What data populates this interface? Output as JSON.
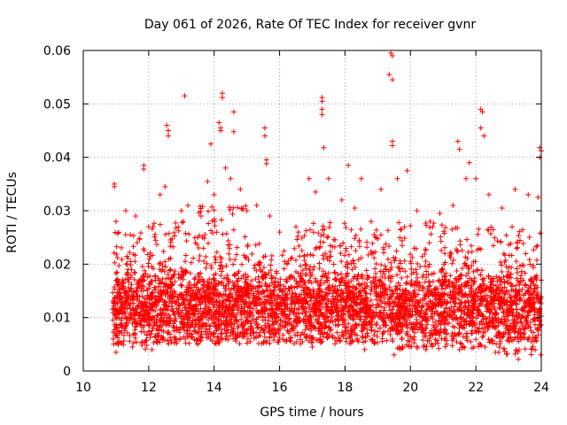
{
  "chart_data": {
    "type": "scatter",
    "title": "Day 061 of 2026, Rate Of TEC Index for receiver gvnr",
    "xlabel": "GPS time / hours",
    "ylabel": "ROTI / TECUs",
    "xlim": [
      10,
      24
    ],
    "ylim": [
      0,
      0.06
    ],
    "x_ticks": [
      10,
      12,
      14,
      16,
      18,
      20,
      22,
      24
    ],
    "x_tick_labels": [
      "10",
      "12",
      "14",
      "16",
      "18",
      "20",
      "22",
      "24"
    ],
    "y_ticks": [
      0,
      0.01,
      0.02,
      0.03,
      0.04,
      0.05,
      0.06
    ],
    "y_tick_labels": [
      "0",
      "0.01",
      "0.02",
      "0.03",
      "0.04",
      "0.05",
      "0.06"
    ],
    "grid": true,
    "marker": "plus",
    "color": "#ff0000",
    "series": [
      {
        "name": "ROTI",
        "points": [
          [
            10.95,
            0.035
          ],
          [
            10.95,
            0.0345
          ],
          [
            11.85,
            0.0385
          ],
          [
            11.85,
            0.0378
          ],
          [
            12.55,
            0.046
          ],
          [
            12.6,
            0.045
          ],
          [
            12.6,
            0.044
          ],
          [
            13.1,
            0.0515
          ],
          [
            13.9,
            0.0425
          ],
          [
            14.15,
            0.0465
          ],
          [
            14.2,
            0.0455
          ],
          [
            14.2,
            0.045
          ],
          [
            14.25,
            0.052
          ],
          [
            14.25,
            0.0512
          ],
          [
            14.6,
            0.0485
          ],
          [
            14.6,
            0.0448
          ],
          [
            15.55,
            0.0455
          ],
          [
            15.55,
            0.044
          ],
          [
            15.6,
            0.0395
          ],
          [
            15.6,
            0.0388
          ],
          [
            17.3,
            0.0512
          ],
          [
            17.3,
            0.0505
          ],
          [
            17.3,
            0.049
          ],
          [
            17.3,
            0.048
          ],
          [
            17.35,
            0.0418
          ],
          [
            18.1,
            0.0385
          ],
          [
            19.4,
            0.0595
          ],
          [
            19.45,
            0.059
          ],
          [
            19.35,
            0.0555
          ],
          [
            19.45,
            0.0545
          ],
          [
            19.45,
            0.043
          ],
          [
            19.45,
            0.0422
          ],
          [
            21.45,
            0.043
          ],
          [
            21.5,
            0.0415
          ],
          [
            21.8,
            0.039
          ],
          [
            22.15,
            0.049
          ],
          [
            22.2,
            0.0485
          ],
          [
            22.15,
            0.0455
          ],
          [
            22.25,
            0.044
          ],
          [
            23.95,
            0.0418
          ],
          [
            23.95,
            0.04
          ],
          [
            24.0,
            0.0412
          ],
          [
            11.0,
            0.028
          ],
          [
            11.3,
            0.03
          ],
          [
            11.6,
            0.029
          ],
          [
            12.0,
            0.027
          ],
          [
            12.35,
            0.033
          ],
          [
            12.5,
            0.0345
          ],
          [
            13.0,
            0.03
          ],
          [
            13.2,
            0.031
          ],
          [
            13.6,
            0.029
          ],
          [
            13.8,
            0.0355
          ],
          [
            14.0,
            0.033
          ],
          [
            14.35,
            0.038
          ],
          [
            14.5,
            0.036
          ],
          [
            14.8,
            0.034
          ],
          [
            15.0,
            0.03
          ],
          [
            15.3,
            0.031
          ],
          [
            15.7,
            0.029
          ],
          [
            16.0,
            0.026
          ],
          [
            16.5,
            0.027
          ],
          [
            16.9,
            0.036
          ],
          [
            17.1,
            0.0335
          ],
          [
            17.5,
            0.036
          ],
          [
            17.9,
            0.032
          ],
          [
            18.3,
            0.0305
          ],
          [
            18.5,
            0.036
          ],
          [
            18.8,
            0.028
          ],
          [
            19.1,
            0.034
          ],
          [
            19.6,
            0.036
          ],
          [
            19.9,
            0.0375
          ],
          [
            20.2,
            0.03
          ],
          [
            20.6,
            0.028
          ],
          [
            20.9,
            0.0295
          ],
          [
            21.3,
            0.031
          ],
          [
            21.7,
            0.036
          ],
          [
            22.0,
            0.036
          ],
          [
            22.4,
            0.033
          ],
          [
            22.8,
            0.0305
          ],
          [
            23.2,
            0.034
          ],
          [
            23.6,
            0.033
          ],
          [
            23.9,
            0.0325
          ],
          [
            11.0,
            0.0035
          ],
          [
            11.5,
            0.0045
          ],
          [
            12.1,
            0.004
          ],
          [
            13.5,
            0.005
          ],
          [
            15.1,
            0.0055
          ],
          [
            17.0,
            0.0045
          ],
          [
            18.6,
            0.004
          ],
          [
            19.5,
            0.003
          ],
          [
            20.4,
            0.0045
          ],
          [
            21.5,
            0.004
          ],
          [
            22.6,
            0.0035
          ],
          [
            23.3,
            0.0022
          ],
          [
            23.7,
            0.0055
          ]
        ],
        "bulk_band": [
          {
            "x_range": [
              10.9,
              12.0
            ],
            "y_range": [
              0.004,
              0.026
            ],
            "count": 380
          },
          {
            "x_range": [
              12.0,
              13.5
            ],
            "y_range": [
              0.005,
              0.028
            ],
            "count": 520
          },
          {
            "x_range": [
              13.5,
              15.0
            ],
            "y_range": [
              0.005,
              0.031
            ],
            "count": 560
          },
          {
            "x_range": [
              15.0,
              16.5
            ],
            "y_range": [
              0.005,
              0.024
            ],
            "count": 460
          },
          {
            "x_range": [
              16.5,
              18.0
            ],
            "y_range": [
              0.005,
              0.028
            ],
            "count": 520
          },
          {
            "x_range": [
              18.0,
              19.5
            ],
            "y_range": [
              0.005,
              0.027
            ],
            "count": 500
          },
          {
            "x_range": [
              19.5,
              21.0
            ],
            "y_range": [
              0.004,
              0.028
            ],
            "count": 500
          },
          {
            "x_range": [
              21.0,
              22.5
            ],
            "y_range": [
              0.004,
              0.027
            ],
            "count": 480
          },
          {
            "x_range": [
              22.5,
              24.0
            ],
            "y_range": [
              0.003,
              0.027
            ],
            "count": 520
          }
        ]
      }
    ]
  }
}
